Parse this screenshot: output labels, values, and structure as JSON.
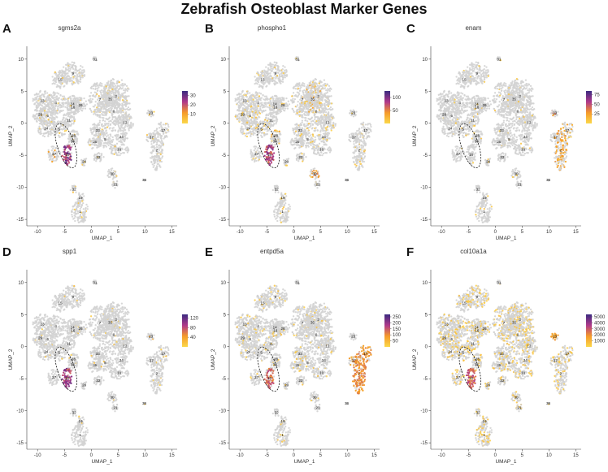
{
  "title": "Zebrafish Osteoblast Marker Genes",
  "colors": {
    "cells_grey": "#d3d3d3",
    "background": "#ffffff",
    "scale_low": "#fbd84a",
    "scale_mid_low": "#f59a2a",
    "scale_mid": "#b0398a",
    "scale_high": "#3b2a80",
    "highlight_outline": "#111111"
  },
  "chart_data": [
    {
      "type": "scatter",
      "letter": "A",
      "title": "sgms2a",
      "xlabel": "UMAP_1",
      "ylabel": "UMAP_2",
      "xlim": [
        -12,
        16
      ],
      "ylim": [
        -16,
        12
      ],
      "xticks": [
        -10,
        -5,
        0,
        5,
        10,
        15
      ],
      "yticks": [
        10,
        5,
        0,
        -5,
        -10,
        -15
      ],
      "legend_ticks": [
        30,
        20,
        10
      ],
      "legend_max": 35,
      "expression_level": 0.15,
      "hotspots": [
        {
          "cluster": "18",
          "intensity": 0.85,
          "coverage": 0.9
        },
        {
          "cluster": "27",
          "intensity": 0.35,
          "coverage": 0.25
        }
      ]
    },
    {
      "type": "scatter",
      "letter": "B",
      "title": "phospho1",
      "xlabel": "UMAP_1",
      "ylabel": "UMAP_2",
      "xlim": [
        -12,
        16
      ],
      "ylim": [
        -16,
        12
      ],
      "xticks": [
        -10,
        -5,
        0,
        5,
        10,
        15
      ],
      "yticks": [
        10,
        5,
        0,
        -5,
        -10,
        -15
      ],
      "legend_ticks": [
        100,
        50
      ],
      "legend_max": 125,
      "expression_level": 0.25,
      "hotspots": [
        {
          "cluster": "18",
          "intensity": 0.75,
          "coverage": 0.9
        },
        {
          "cluster": "35",
          "intensity": 0.3,
          "coverage": 0.3
        },
        {
          "cluster": "30",
          "intensity": 0.4,
          "coverage": 0.3
        },
        {
          "cluster": "28",
          "intensity": 0.3,
          "coverage": 0.3
        }
      ]
    },
    {
      "type": "scatter",
      "letter": "C",
      "title": "enam",
      "xlabel": "UMAP_1",
      "ylabel": "UMAP_2",
      "xlim": [
        -12,
        16
      ],
      "ylim": [
        -16,
        12
      ],
      "xticks": [
        -10,
        -5,
        0,
        5,
        10,
        15
      ],
      "yticks": [
        10,
        5,
        0,
        -5,
        -10,
        -15
      ],
      "legend_ticks": [
        75,
        50,
        25
      ],
      "legend_max": 85,
      "expression_level": 0.12,
      "hotspots": [
        {
          "cluster": "2",
          "intensity": 0.35,
          "coverage": 0.45
        },
        {
          "cluster": "23",
          "intensity": 0.5,
          "coverage": 0.3
        },
        {
          "cluster": "17",
          "intensity": 0.3,
          "coverage": 0.3
        }
      ]
    },
    {
      "type": "scatter",
      "letter": "D",
      "title": "spp1",
      "xlabel": "UMAP_1",
      "ylabel": "UMAP_2",
      "xlim": [
        -12,
        16
      ],
      "ylim": [
        -16,
        12
      ],
      "xticks": [
        -10,
        -5,
        0,
        5,
        10,
        15
      ],
      "yticks": [
        10,
        5,
        0,
        -5,
        -10,
        -15
      ],
      "legend_ticks": [
        120,
        80,
        40
      ],
      "legend_max": 135,
      "expression_level": 0.1,
      "hotspots": [
        {
          "cluster": "18",
          "intensity": 0.8,
          "coverage": 0.95
        },
        {
          "cluster": "23",
          "intensity": 0.3,
          "coverage": 0.2
        }
      ]
    },
    {
      "type": "scatter",
      "letter": "E",
      "title": "entpd5a",
      "xlabel": "UMAP_1",
      "ylabel": "UMAP_2",
      "xlim": [
        -12,
        16
      ],
      "ylim": [
        -16,
        12
      ],
      "xticks": [
        -10,
        -5,
        0,
        5,
        10,
        15
      ],
      "yticks": [
        10,
        5,
        0,
        -5,
        -10,
        -15
      ],
      "legend_ticks": [
        250,
        200,
        150,
        100,
        50
      ],
      "legend_max": 270,
      "expression_level": 0.25,
      "hotspots": [
        {
          "cluster": "2",
          "intensity": 0.45,
          "coverage": 0.85
        },
        {
          "cluster": "17",
          "intensity": 0.4,
          "coverage": 0.7
        },
        {
          "cluster": "18",
          "intensity": 0.6,
          "coverage": 0.8
        },
        {
          "cluster": "37",
          "intensity": 0.3,
          "coverage": 0.4
        }
      ]
    },
    {
      "type": "scatter",
      "letter": "F",
      "title": "col10a1a",
      "xlabel": "UMAP_1",
      "ylabel": "UMAP_2",
      "xlim": [
        -12,
        16
      ],
      "ylim": [
        -16,
        12
      ],
      "xticks": [
        -10,
        -5,
        0,
        5,
        10,
        15
      ],
      "yticks": [
        10,
        5,
        0,
        -5,
        -10,
        -15
      ],
      "legend_ticks": [
        5000,
        4000,
        3000,
        2000,
        1000
      ],
      "legend_max": 5400,
      "expression_level": 0.8,
      "hotspots": [
        {
          "cluster": "18",
          "intensity": 0.6,
          "coverage": 0.9
        },
        {
          "cluster": "23",
          "intensity": 0.35,
          "coverage": 0.5
        }
      ]
    }
  ],
  "clusters": [
    {
      "id": "0",
      "x": 4.2,
      "y": 1.9
    },
    {
      "id": "1",
      "x": -2.1,
      "y": -13.8
    },
    {
      "id": "2",
      "x": 12.2,
      "y": -4.2
    },
    {
      "id": "3",
      "x": 4.6,
      "y": 4.2
    },
    {
      "id": "4",
      "x": -6.6,
      "y": 3.2
    },
    {
      "id": "5",
      "x": -6.0,
      "y": -0.9
    },
    {
      "id": "6",
      "x": -8.1,
      "y": 1.2
    },
    {
      "id": "7",
      "x": 1.6,
      "y": 3.7
    },
    {
      "id": "8",
      "x": 2.6,
      "y": -2.5
    },
    {
      "id": "9",
      "x": -3.4,
      "y": 7.8
    },
    {
      "id": "10",
      "x": 5.2,
      "y": -4.1
    },
    {
      "id": "11",
      "x": -4.2,
      "y": 0.5
    },
    {
      "id": "12",
      "x": 6.3,
      "y": 0.1
    },
    {
      "id": "13",
      "x": -9.1,
      "y": 3.5
    },
    {
      "id": "14",
      "x": -3.5,
      "y": 3.0
    },
    {
      "id": "15",
      "x": -5.8,
      "y": 6.8
    },
    {
      "id": "16",
      "x": -3.4,
      "y": 2.5
    },
    {
      "id": "17",
      "x": 13.4,
      "y": -1.1
    },
    {
      "id": "18",
      "x": -4.5,
      "y": -4.9
    },
    {
      "id": "19",
      "x": -2.0,
      "y": -11.6
    },
    {
      "id": "20",
      "x": -1.3,
      "y": -6.0
    },
    {
      "id": "21",
      "x": 4.5,
      "y": -9.5
    },
    {
      "id": "22",
      "x": 1.3,
      "y": -5.3
    },
    {
      "id": "23",
      "x": 11.1,
      "y": 1.6
    },
    {
      "id": "24",
      "x": -8.4,
      "y": -0.8
    },
    {
      "id": "25",
      "x": 0.7,
      "y": -2.9
    },
    {
      "id": "26",
      "x": -2.0,
      "y": 2.8
    },
    {
      "id": "27",
      "x": -6.9,
      "y": -4.8
    },
    {
      "id": "28",
      "x": -3.3,
      "y": -1.9
    },
    {
      "id": "29",
      "x": -9.5,
      "y": 1.4
    },
    {
      "id": "30",
      "x": 3.9,
      "y": -7.9
    },
    {
      "id": "31",
      "x": 0.7,
      "y": 10.0
    },
    {
      "id": "32",
      "x": -3.2,
      "y": -10.3
    },
    {
      "id": "33",
      "x": 1.2,
      "y": -1.1
    },
    {
      "id": "34",
      "x": 5.6,
      "y": -2.1
    },
    {
      "id": "35",
      "x": 3.5,
      "y": 3.8
    },
    {
      "id": "36",
      "x": 9.9,
      "y": -8.8
    },
    {
      "id": "37",
      "x": 11.2,
      "y": -2.2
    },
    {
      "id": "38",
      "x": -3.5,
      "y": -2.8
    }
  ],
  "highlight": {
    "around_clusters": [
      "18",
      "27"
    ]
  }
}
